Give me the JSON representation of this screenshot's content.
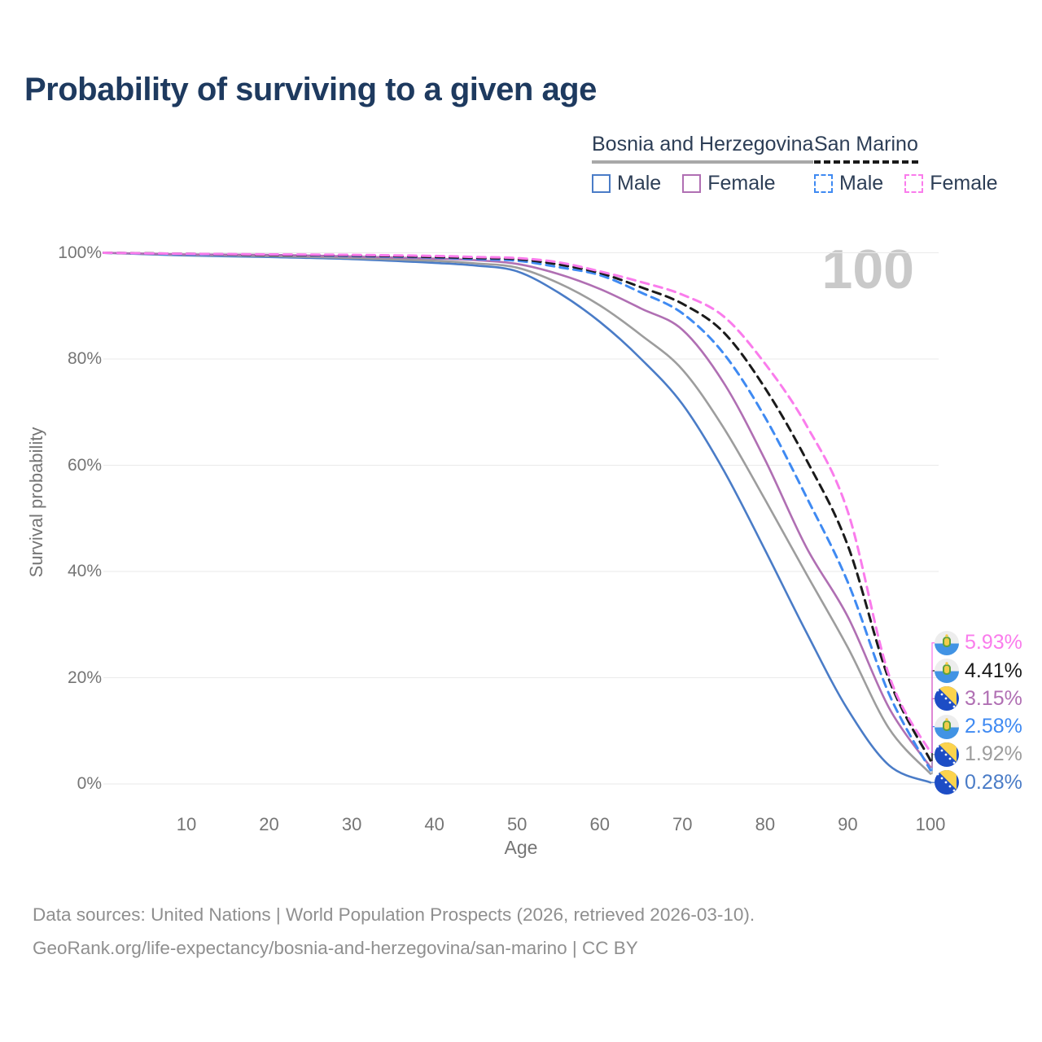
{
  "title": "Probability of surviving to a given age",
  "watermark": "100",
  "legend": {
    "groups": [
      {
        "id": "bosnia-and-herzegovina",
        "label": "Bosnia and Herzegovina",
        "line_style": "solid",
        "underline_color": "#a8a8a8",
        "items": [
          {
            "label": "Male",
            "color": "#4a7cc7"
          },
          {
            "label": "Female",
            "color": "#b06fb3"
          }
        ]
      },
      {
        "id": "san-marino",
        "label": "San Marino",
        "line_style": "dashed",
        "underline_color": "#1a1a1a",
        "items": [
          {
            "label": "Male",
            "color": "#3f8af2"
          },
          {
            "label": "Female",
            "color": "#fa7cec"
          }
        ]
      }
    ]
  },
  "chart_data": {
    "type": "line",
    "title": "Probability of surviving to a given age",
    "xlabel": "Age",
    "ylabel": "Survival probability",
    "xlim": [
      0,
      100
    ],
    "ylim": [
      0,
      100
    ],
    "grid": "horizontal",
    "x_ticks": [
      10,
      20,
      30,
      40,
      50,
      60,
      70,
      80,
      90,
      100
    ],
    "y_ticks": [
      "0%",
      "20%",
      "40%",
      "60%",
      "80%",
      "100%"
    ],
    "ages": [
      0,
      10,
      20,
      30,
      40,
      45,
      50,
      55,
      60,
      65,
      70,
      75,
      80,
      85,
      90,
      95,
      100
    ],
    "series": [
      {
        "name": "Bosnia and Herzegovina — Male",
        "country": "Bosnia and Herzegovina",
        "sex": "male",
        "color": "#4a7cc7",
        "dashed": false,
        "flag": "ba",
        "end_label": "0.28%",
        "values": [
          100,
          99.5,
          99.2,
          98.8,
          98.1,
          97.6,
          96.5,
          92.5,
          87,
          80,
          71.5,
          59,
          44,
          28.5,
          14,
          3.5,
          0.28
        ]
      },
      {
        "name": "Bosnia and Herzegovina — Both sexes",
        "country": "Bosnia and Herzegovina",
        "sex": "total",
        "color": "#9d9d9d",
        "dashed": false,
        "flag": "ba",
        "end_label": "1.92%",
        "values": [
          100,
          99.6,
          99.4,
          99,
          98.5,
          98,
          97.2,
          94.3,
          90.1,
          84.5,
          78,
          67,
          53.5,
          39.5,
          25.7,
          10.4,
          1.92
        ]
      },
      {
        "name": "Bosnia and Herzegovina — Female",
        "country": "Bosnia and Herzegovina",
        "sex": "female",
        "color": "#b06fb3",
        "dashed": false,
        "flag": "ba",
        "end_label": "3.15%",
        "values": [
          100,
          99.7,
          99.6,
          99.3,
          98.9,
          98.6,
          97.9,
          96,
          93.2,
          89.5,
          85.5,
          75.5,
          61,
          44.5,
          31.5,
          14.3,
          3.15
        ]
      },
      {
        "name": "San Marino — Male",
        "country": "San Marino",
        "sex": "male",
        "color": "#3f8af2",
        "dashed": true,
        "flag": "sm",
        "end_label": "2.58%",
        "values": [
          100,
          99.7,
          99.6,
          99.4,
          99.1,
          98.8,
          98.5,
          97.3,
          95.8,
          92.5,
          88.6,
          81,
          69,
          54,
          38,
          16.9,
          2.58
        ]
      },
      {
        "name": "San Marino — Both sexes",
        "country": "San Marino",
        "sex": "total",
        "color": "#1a1a1a",
        "dashed": true,
        "flag": "sm",
        "end_label": "4.41%",
        "values": [
          100,
          99.8,
          99.6,
          99.5,
          99.2,
          99,
          98.8,
          97.8,
          96.2,
          93.5,
          90.4,
          85,
          74.5,
          61,
          44.9,
          19.6,
          4.41
        ]
      },
      {
        "name": "San Marino — Female",
        "country": "San Marino",
        "sex": "female",
        "color": "#fa7cec",
        "dashed": true,
        "flag": "sm",
        "end_label": "5.93%",
        "values": [
          100,
          99.8,
          99.7,
          99.6,
          99.4,
          99.2,
          99,
          98.2,
          96.5,
          94.5,
          92.1,
          88,
          79.1,
          67.5,
          51.3,
          20.4,
          5.93
        ]
      }
    ]
  },
  "footer": {
    "line1": "Data sources: United Nations | World Population Prospects (2026, retrieved 2026-03-10).",
    "line2": "GeoRank.org/life-expectancy/bosnia-and-herzegovina/san-marino | CC BY"
  }
}
